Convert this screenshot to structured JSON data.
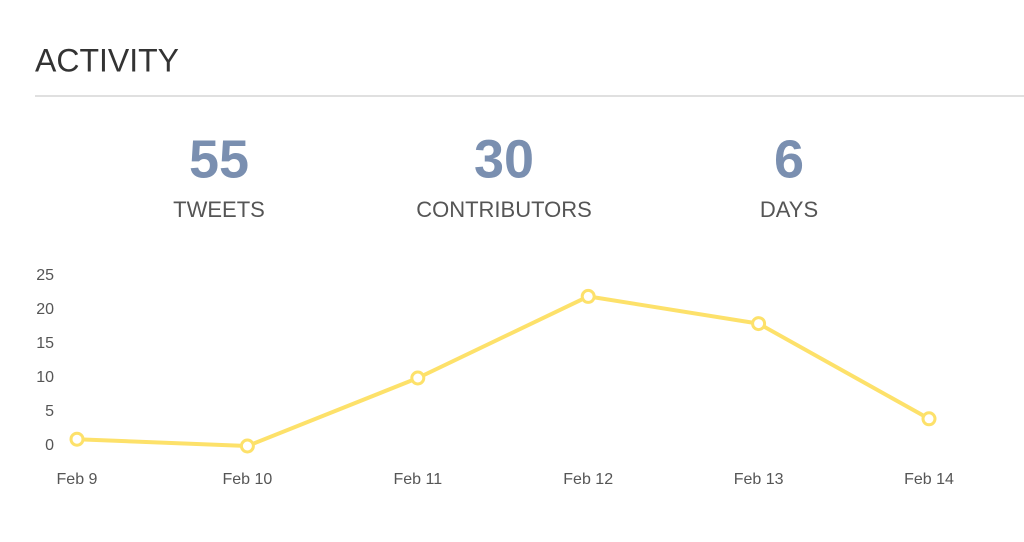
{
  "header": {
    "title": "ACTIVITY"
  },
  "stats": [
    {
      "value": 55,
      "label": "TWEETS"
    },
    {
      "value": 30,
      "label": "CONTRIBUTORS"
    },
    {
      "value": 6,
      "label": "DAYS"
    }
  ],
  "chart_data": {
    "type": "line",
    "categories": [
      "Feb 9",
      "Feb 10",
      "Feb 11",
      "Feb 12",
      "Feb 13",
      "Feb 14"
    ],
    "values": [
      1,
      0,
      10,
      22,
      18,
      4
    ],
    "color": "#fde16a",
    "ylim": [
      0,
      25
    ],
    "yticks": [
      0,
      5,
      10,
      15,
      20,
      25
    ]
  }
}
